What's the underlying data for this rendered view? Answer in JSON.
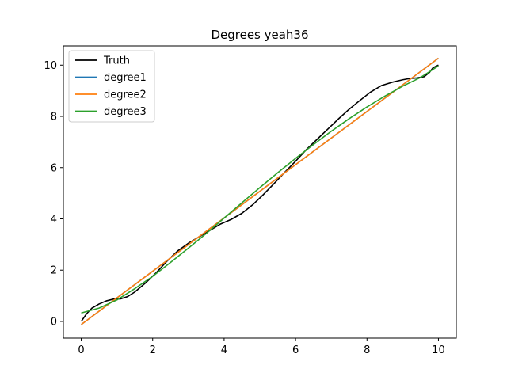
{
  "chart_data": {
    "type": "line",
    "title": "Degrees yeah36",
    "xlabel": "",
    "ylabel": "",
    "xlim": [
      -0.5,
      10.5
    ],
    "ylim": [
      -0.65,
      10.75
    ],
    "xticks": [
      0,
      2,
      4,
      6,
      8,
      10
    ],
    "yticks": [
      0,
      2,
      4,
      6,
      8,
      10
    ],
    "grid": false,
    "legend_position": "top-left",
    "series": [
      {
        "name": "Truth",
        "color": "#000000",
        "x": [
          0,
          0.15,
          0.3,
          0.5,
          0.7,
          0.9,
          1.1,
          1.3,
          1.5,
          1.8,
          2.1,
          2.4,
          2.7,
          3.0,
          3.3,
          3.6,
          3.9,
          4.2,
          4.5,
          4.8,
          5.1,
          5.4,
          5.7,
          6.0,
          6.3,
          6.6,
          6.9,
          7.2,
          7.5,
          7.8,
          8.1,
          8.4,
          8.7,
          9.0,
          9.2,
          9.4,
          9.6,
          9.75,
          9.85,
          10.0
        ],
        "y": [
          0.0,
          0.3,
          0.52,
          0.68,
          0.8,
          0.87,
          0.88,
          0.97,
          1.15,
          1.5,
          1.9,
          2.35,
          2.75,
          3.05,
          3.3,
          3.55,
          3.8,
          3.98,
          4.22,
          4.55,
          4.95,
          5.38,
          5.82,
          6.25,
          6.7,
          7.1,
          7.5,
          7.9,
          8.28,
          8.62,
          8.95,
          9.2,
          9.33,
          9.43,
          9.48,
          9.5,
          9.55,
          9.72,
          9.9,
          10.0
        ]
      },
      {
        "name": "degree1",
        "color": "#1f77b4",
        "x": [
          0,
          10
        ],
        "y": [
          -0.12,
          10.27
        ]
      },
      {
        "name": "degree2",
        "color": "#ff7f0e",
        "x": [
          0,
          10
        ],
        "y": [
          -0.12,
          10.27
        ]
      },
      {
        "name": "degree3",
        "color": "#2ca02c",
        "x": [
          0,
          0.5,
          1,
          1.5,
          2,
          2.5,
          3,
          3.5,
          4,
          4.5,
          5,
          5.5,
          6,
          6.5,
          7,
          7.5,
          8,
          8.5,
          9,
          9.5,
          10
        ],
        "y": [
          0.33,
          0.52,
          0.84,
          1.28,
          1.76,
          2.3,
          2.86,
          3.43,
          4.03,
          4.63,
          5.22,
          5.8,
          6.36,
          6.9,
          7.42,
          7.91,
          8.37,
          8.79,
          9.18,
          9.52,
          9.97
        ]
      }
    ]
  }
}
